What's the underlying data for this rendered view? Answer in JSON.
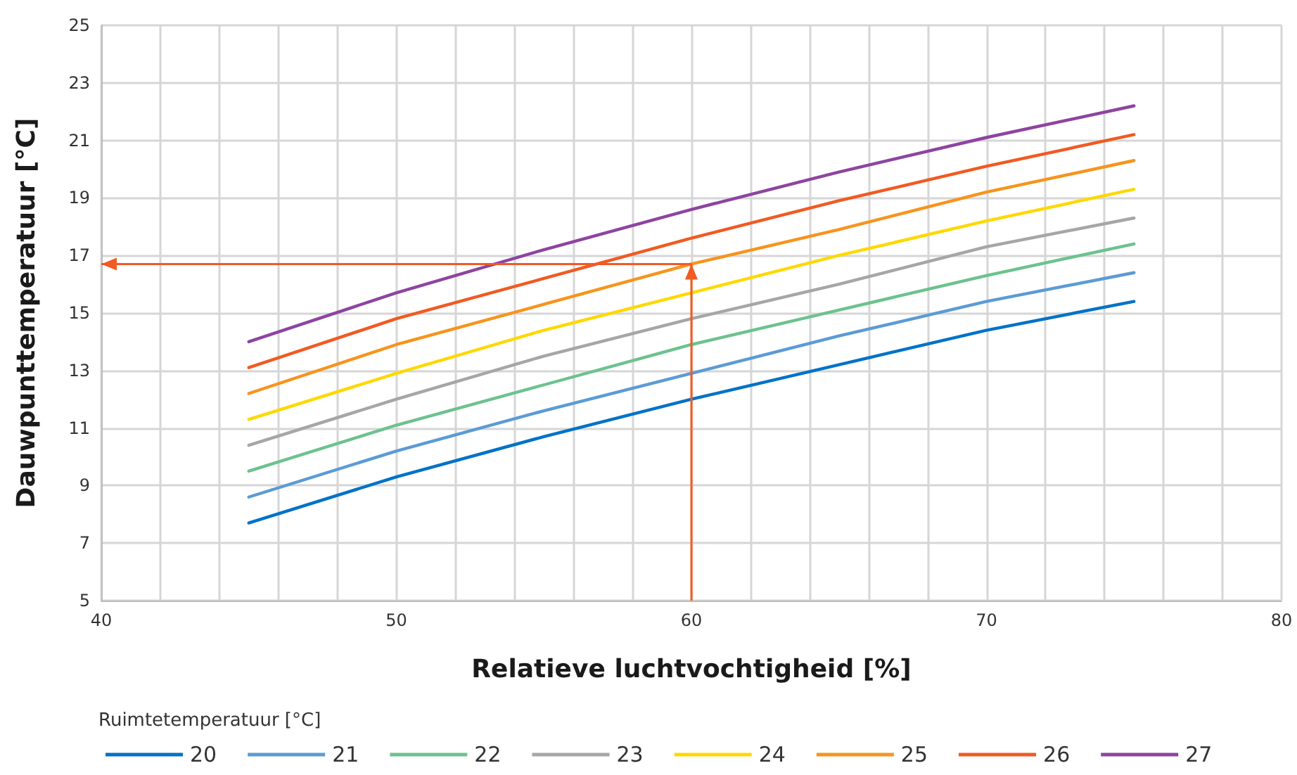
{
  "chart_data": {
    "type": "line",
    "xlabel": "Relatieve luchtvochtigheid [%]",
    "ylabel": "Dauwpunttemperatuur [°C]",
    "legend_title": "Ruimtetemperatuur [°C]",
    "x": [
      45,
      50,
      55,
      60,
      65,
      70,
      75
    ],
    "xlim": [
      40,
      80
    ],
    "ylim": [
      5,
      25
    ],
    "xticks": [
      40,
      {
        "value": 42,
        "label": null
      },
      {
        "value": 44,
        "label": null
      },
      {
        "value": 46,
        "label": null
      },
      {
        "value": 48,
        "label": null
      },
      50,
      {
        "value": 52,
        "label": null
      },
      {
        "value": 54,
        "label": null
      },
      {
        "value": 56,
        "label": null
      },
      {
        "value": 58,
        "label": null
      },
      60,
      {
        "value": 62,
        "label": null
      },
      {
        "value": 64,
        "label": null
      },
      {
        "value": 66,
        "label": null
      },
      {
        "value": 68,
        "label": null
      },
      70,
      {
        "value": 72,
        "label": null
      },
      {
        "value": 74,
        "label": null
      },
      {
        "value": 76,
        "label": null
      },
      {
        "value": 78,
        "label": null
      },
      80
    ],
    "yticks": [
      5,
      7,
      9,
      11,
      13,
      15,
      17,
      19,
      21,
      23,
      25
    ],
    "grid": true,
    "legend": "bottom left",
    "marker": "none",
    "line_style": "solid",
    "series": [
      {
        "name": "20",
        "color": "#0072c6",
        "values": [
          7.7,
          9.3,
          10.7,
          12.0,
          13.2,
          14.4,
          15.4
        ]
      },
      {
        "name": "21",
        "color": "#5b9bd5",
        "values": [
          8.6,
          10.2,
          11.6,
          12.9,
          14.2,
          15.4,
          16.4
        ]
      },
      {
        "name": "22",
        "color": "#6cc28e",
        "values": [
          9.5,
          11.1,
          12.5,
          13.9,
          15.1,
          16.3,
          17.4
        ]
      },
      {
        "name": "23",
        "color": "#a6a6a6",
        "values": [
          10.4,
          12.0,
          13.5,
          14.8,
          16.0,
          17.3,
          18.3
        ]
      },
      {
        "name": "24",
        "color": "#ffd800",
        "values": [
          11.3,
          12.9,
          14.4,
          15.7,
          17.0,
          18.2,
          19.3
        ]
      },
      {
        "name": "25",
        "color": "#f7941d",
        "values": [
          12.2,
          13.9,
          15.3,
          16.7,
          17.9,
          19.2,
          20.3
        ]
      },
      {
        "name": "26",
        "color": "#f15a22",
        "values": [
          13.1,
          14.8,
          16.2,
          17.6,
          18.9,
          20.1,
          21.2
        ]
      },
      {
        "name": "27",
        "color": "#8e44a0",
        "values": [
          14.0,
          15.7,
          17.2,
          18.6,
          19.9,
          21.1,
          22.2
        ]
      }
    ]
  }
}
